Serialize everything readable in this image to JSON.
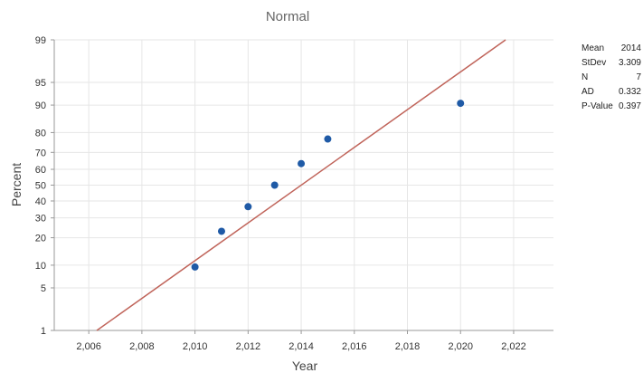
{
  "chart_data": {
    "type": "scatter",
    "title": "Normal",
    "xlabel": "Year",
    "ylabel": "Percent",
    "xlim": [
      2004.7,
      2023.5
    ],
    "x_ticks": [
      2006,
      2008,
      2010,
      2012,
      2014,
      2016,
      2018,
      2020,
      2022
    ],
    "x_tick_labels": [
      "2,006",
      "2,008",
      "2,010",
      "2,012",
      "2,014",
      "2,016",
      "2,018",
      "2,020",
      "2,022"
    ],
    "y_scale": "normal probability",
    "ylim": [
      1,
      99
    ],
    "y_ticks": [
      1,
      5,
      10,
      20,
      30,
      40,
      50,
      60,
      70,
      80,
      90,
      95,
      99
    ],
    "y_tick_labels": [
      "1",
      "5",
      "10",
      "20",
      "30",
      "40",
      "50",
      "60",
      "70",
      "80",
      "90",
      "95",
      "99"
    ],
    "grid": true,
    "points": [
      {
        "x": 2010,
        "y": 9.5
      },
      {
        "x": 2011,
        "y": 23
      },
      {
        "x": 2012,
        "y": 36.5
      },
      {
        "x": 2013,
        "y": 50
      },
      {
        "x": 2014,
        "y": 63.5
      },
      {
        "x": 2015,
        "y": 77
      },
      {
        "x": 2020,
        "y": 90.5
      }
    ],
    "fit_line": {
      "mean": 2014,
      "stdev": 3.309
    },
    "colors": {
      "points": "#1f5aa6",
      "fit_line": "#c0645a",
      "grid": "#e6e6e6",
      "axis": "#999999"
    }
  },
  "stats": [
    {
      "label": "Mean",
      "value": "2014"
    },
    {
      "label": "StDev",
      "value": "3.309"
    },
    {
      "label": "N",
      "value": "7"
    },
    {
      "label": "AD",
      "value": "0.332"
    },
    {
      "label": "P-Value",
      "value": "0.397"
    }
  ]
}
